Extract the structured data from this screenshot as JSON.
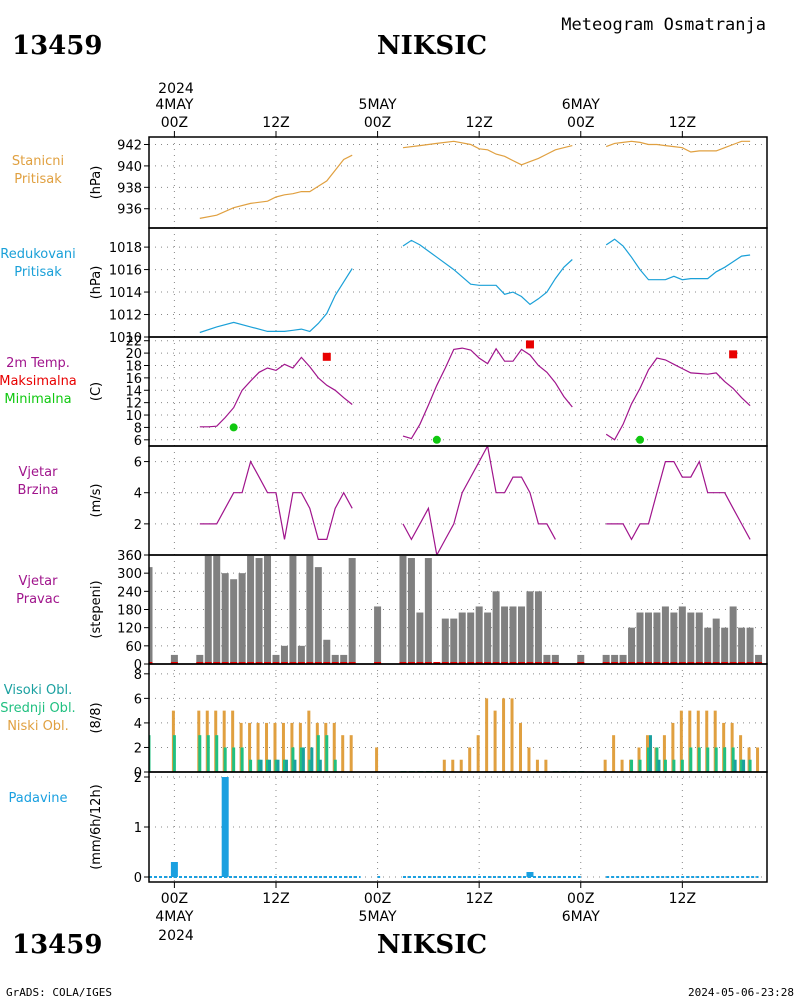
{
  "header": {
    "station_id": "13459",
    "station_name": "NIKSIC",
    "subtitle": "Meteogram Osmatranja",
    "year_top": "2024",
    "year_bottom": "2024"
  },
  "footer": {
    "credit": "GrADS: COLA/IGES",
    "timestamp": "2024-05-06-23:28"
  },
  "time_axis": {
    "ticks": [
      {
        "h": 0,
        "top": [
          "4MAY",
          "00Z"
        ],
        "bottom": [
          "00Z",
          "4MAY"
        ]
      },
      {
        "h": 12,
        "top": [
          "12Z"
        ],
        "bottom": [
          "12Z"
        ]
      },
      {
        "h": 24,
        "top": [
          "5MAY",
          "00Z"
        ],
        "bottom": [
          "00Z",
          "5MAY"
        ]
      },
      {
        "h": 36,
        "top": [
          "12Z"
        ],
        "bottom": [
          "12Z"
        ]
      },
      {
        "h": 48,
        "top": [
          "6MAY",
          "00Z"
        ],
        "bottom": [
          "00Z",
          "6MAY"
        ]
      },
      {
        "h": 60,
        "top": [
          "12Z"
        ],
        "bottom": [
          "12Z"
        ]
      }
    ],
    "range_hours": [
      -3,
      70
    ]
  },
  "colors": {
    "station_pressure": "#e0a040",
    "reduced_pressure": "#1aa0d8",
    "temperature": "#a0148c",
    "maximum": "#e80000",
    "minimum": "#10c810",
    "wind": "#a0148c",
    "wind_dir_bar": "#808080",
    "cloud_high": "#1aa0a0",
    "cloud_mid": "#20c080",
    "cloud_low": "#e0a040",
    "precip": "#1aa0e0",
    "grid": "#888888"
  },
  "chart_data": [
    {
      "type": "line",
      "panel": "station_pressure",
      "labels": [
        "Stanicni",
        "Pritisak"
      ],
      "ylabel": "(hPa)",
      "ylim": [
        934.2,
        942.7
      ],
      "yticks": [
        936,
        938,
        940,
        942
      ],
      "series": [
        {
          "x": [
            3,
            5,
            7,
            9,
            11,
            12,
            13,
            14,
            15,
            16,
            17,
            18,
            19,
            20,
            21
          ],
          "y": [
            935.1,
            935.4,
            936.1,
            936.5,
            936.7,
            937.1,
            937.3,
            937.4,
            937.6,
            937.6,
            938.1,
            938.6,
            939.6,
            940.6,
            941.0
          ]
        },
        {
          "x": [
            27,
            29,
            31,
            33,
            35,
            36,
            37,
            38,
            39,
            40,
            41,
            42,
            43,
            44,
            45,
            46,
            47
          ],
          "y": [
            941.7,
            941.9,
            942.1,
            942.3,
            942.0,
            941.6,
            941.5,
            941.1,
            940.9,
            940.5,
            940.1,
            940.4,
            940.7,
            941.1,
            941.5,
            941.7,
            941.9
          ]
        },
        {
          "x": [
            51,
            52,
            53,
            54,
            55,
            56,
            57,
            58,
            59,
            60,
            61,
            62,
            63,
            64,
            65,
            66,
            67,
            68
          ],
          "y": [
            941.8,
            942.1,
            942.2,
            942.3,
            942.2,
            942.0,
            942.0,
            941.9,
            941.8,
            941.7,
            941.3,
            941.4,
            941.4,
            941.4,
            941.7,
            942.0,
            942.3,
            942.3
          ]
        }
      ]
    },
    {
      "type": "line",
      "panel": "reduced_pressure",
      "labels": [
        "Redukovani",
        "Pritisak"
      ],
      "ylabel": "(hPa)",
      "ylim": [
        1010,
        1019.7
      ],
      "yticks": [
        1010,
        1012,
        1014,
        1016,
        1018
      ],
      "series": [
        {
          "x": [
            3,
            5,
            7,
            9,
            11,
            12,
            13,
            14,
            15,
            16,
            17,
            18,
            19,
            20,
            21
          ],
          "y": [
            1010.4,
            1010.9,
            1011.3,
            1010.9,
            1010.5,
            1010.5,
            1010.5,
            1010.6,
            1010.7,
            1010.5,
            1011.2,
            1012.1,
            1013.7,
            1014.9,
            1016.1
          ]
        },
        {
          "x": [
            27,
            28,
            29,
            31,
            33,
            35,
            36,
            37,
            38,
            39,
            40,
            41,
            42,
            43,
            44,
            45,
            46,
            47
          ],
          "y": [
            1018.1,
            1018.6,
            1018.2,
            1017.1,
            1016.0,
            1014.7,
            1014.6,
            1014.6,
            1014.6,
            1013.8,
            1014.0,
            1013.6,
            1012.9,
            1013.4,
            1014.0,
            1015.2,
            1016.2,
            1016.9
          ]
        },
        {
          "x": [
            51,
            52,
            53,
            54,
            55,
            56,
            57,
            58,
            59,
            60,
            61,
            62,
            63,
            64,
            65,
            66,
            67,
            68
          ],
          "y": [
            1018.2,
            1018.7,
            1018.1,
            1017.1,
            1016.0,
            1015.1,
            1015.1,
            1015.1,
            1015.4,
            1015.1,
            1015.2,
            1015.2,
            1015.2,
            1015.8,
            1016.2,
            1016.7,
            1017.2,
            1017.3
          ]
        }
      ]
    },
    {
      "type": "line",
      "panel": "temperature",
      "labels": [
        "2m Temp.",
        "Maksimalna",
        "Minimalna"
      ],
      "ylabel": "(C)",
      "ylim": [
        5,
        22.6
      ],
      "yticks": [
        6,
        8,
        10,
        12,
        14,
        16,
        18,
        20,
        22
      ],
      "series": [
        {
          "x": [
            3,
            4,
            5,
            6,
            7,
            8,
            9,
            10,
            11,
            12,
            13,
            14,
            15,
            16,
            17,
            18,
            19,
            20,
            21
          ],
          "y": [
            8.1,
            8.1,
            8.2,
            9.6,
            11.2,
            14.0,
            15.5,
            16.9,
            17.6,
            17.2,
            18.2,
            17.6,
            19.3,
            17.8,
            16.0,
            14.8,
            14.0,
            12.8,
            11.7
          ]
        },
        {
          "x": [
            27,
            28,
            29,
            30,
            31,
            32,
            33,
            34,
            35,
            36,
            37,
            38,
            39,
            40,
            41,
            42,
            43,
            44,
            45,
            46,
            47
          ],
          "y": [
            6.6,
            6.2,
            8.5,
            11.6,
            14.8,
            17.6,
            20.6,
            20.8,
            20.5,
            19.2,
            18.3,
            20.7,
            18.7,
            18.7,
            20.6,
            19.7,
            18.0,
            16.9,
            15.2,
            13.0,
            11.3
          ]
        },
        {
          "x": [
            51,
            52,
            53,
            54,
            55,
            56,
            57,
            58,
            59,
            60,
            61,
            62,
            63,
            64,
            65,
            66,
            67,
            68
          ],
          "y": [
            6.9,
            6.0,
            8.5,
            11.8,
            14.3,
            17.3,
            19.2,
            18.9,
            18.2,
            17.5,
            16.8,
            16.7,
            16.6,
            16.8,
            15.4,
            14.3,
            12.8,
            11.5
          ]
        }
      ],
      "maximum": {
        "x": [
          18,
          42,
          66
        ],
        "y": [
          19.4,
          21.4,
          19.8
        ]
      },
      "minimum": {
        "x": [
          7,
          31,
          55
        ],
        "y": [
          8.0,
          6.0,
          6.0
        ]
      }
    },
    {
      "type": "line",
      "panel": "wind_speed",
      "labels": [
        "Vjetar",
        "Brzina"
      ],
      "ylabel": "(m/s)",
      "ylim": [
        0,
        7
      ],
      "yticks": [
        0,
        2,
        4,
        6
      ],
      "series": [
        {
          "x": [
            3,
            5,
            6,
            7,
            8,
            9,
            10,
            11,
            12,
            13,
            14,
            15,
            16,
            17,
            18,
            19,
            20,
            21
          ],
          "y": [
            2,
            2,
            3,
            4,
            4,
            6,
            5,
            4,
            4,
            1,
            4,
            4,
            3,
            1,
            1,
            3,
            4,
            3
          ]
        },
        {
          "x": [
            27,
            28,
            29,
            30,
            31,
            32,
            33,
            34,
            35,
            36,
            37,
            38,
            39,
            40,
            41,
            42,
            43,
            44,
            45,
            46,
            47
          ],
          "y": [
            2,
            1,
            2,
            3,
            0,
            1,
            2,
            4,
            5,
            6,
            7,
            4,
            4,
            5,
            5,
            4,
            2,
            2,
            1,
            null,
            null
          ]
        },
        {
          "x": [
            51,
            52,
            53,
            54,
            55,
            56,
            57,
            58,
            59,
            60,
            61,
            62,
            63,
            64,
            65,
            66,
            67,
            68
          ],
          "y": [
            2,
            2,
            2,
            1,
            2,
            2,
            4,
            6,
            6,
            5,
            5,
            6,
            4,
            4,
            4,
            3,
            2,
            1
          ]
        }
      ]
    },
    {
      "type": "bar",
      "panel": "wind_direction",
      "labels": [
        "Vjetar",
        "Pravac"
      ],
      "ylabel": "(stepeni)",
      "ylim": [
        0,
        360
      ],
      "yticks": [
        0,
        60,
        120,
        180,
        240,
        300,
        360
      ],
      "x": [
        -3,
        0,
        3,
        4,
        5,
        6,
        7,
        8,
        9,
        10,
        11,
        12,
        13,
        14,
        15,
        16,
        17,
        18,
        19,
        20,
        21,
        24,
        27,
        28,
        29,
        30,
        31,
        32,
        33,
        34,
        35,
        36,
        37,
        38,
        39,
        40,
        41,
        42,
        43,
        44,
        45,
        46,
        47,
        48,
        51,
        52,
        53,
        54,
        55,
        56,
        57,
        58,
        59,
        60,
        61,
        62,
        63,
        64,
        65,
        66,
        67,
        68,
        69
      ],
      "values": [
        320,
        30,
        30,
        360,
        360,
        300,
        280,
        300,
        360,
        350,
        360,
        30,
        60,
        360,
        60,
        360,
        320,
        80,
        30,
        30,
        350,
        190,
        360,
        350,
        170,
        350,
        0,
        150,
        150,
        170,
        170,
        190,
        170,
        240,
        190,
        190,
        190,
        240,
        240,
        30,
        30,
        null,
        null,
        30,
        30,
        30,
        30,
        120,
        170,
        170,
        170,
        190,
        170,
        190,
        170,
        170,
        120,
        150,
        120,
        190,
        120,
        120,
        30
      ]
    },
    {
      "type": "bar",
      "panel": "clouds",
      "labels": [
        "Visoki Obl.",
        "Srednji Obl.",
        "Niski Obl."
      ],
      "ylabel": "(8/8)",
      "ylim": [
        0,
        8.8
      ],
      "yticks": [
        0,
        2,
        4,
        6,
        8
      ],
      "x": [
        -3,
        0,
        3,
        4,
        5,
        6,
        7,
        8,
        9,
        10,
        11,
        12,
        13,
        14,
        15,
        16,
        17,
        18,
        19,
        20,
        21,
        24,
        27,
        28,
        29,
        30,
        31,
        32,
        33,
        34,
        35,
        36,
        37,
        38,
        39,
        40,
        41,
        42,
        43,
        44,
        45,
        46,
        47,
        48,
        51,
        52,
        53,
        54,
        55,
        56,
        57,
        58,
        59,
        60,
        61,
        62,
        63,
        64,
        65,
        66,
        67,
        68,
        69
      ],
      "series": [
        {
          "name": "Niski Obl.",
          "values": [
            5,
            5,
            5,
            5,
            5,
            5,
            5,
            4,
            4,
            4,
            4,
            4,
            4,
            4,
            4,
            5,
            4,
            4,
            4,
            3,
            3,
            2,
            0,
            0,
            0,
            0,
            0,
            1,
            1,
            1,
            2,
            3,
            6,
            5,
            6,
            6,
            4,
            2,
            1,
            1,
            0,
            0,
            0,
            0,
            1,
            3,
            1,
            1,
            2,
            3,
            2,
            3,
            4,
            5,
            5,
            5,
            5,
            5,
            4,
            4,
            3,
            2,
            2
          ]
        },
        {
          "name": "Srednji Obl.",
          "values": [
            3,
            3,
            3,
            3,
            3,
            2,
            2,
            2,
            1,
            1,
            1,
            1,
            1,
            2,
            2,
            1,
            3,
            3,
            1,
            0,
            0,
            0,
            0,
            0,
            0,
            0,
            0,
            0,
            0,
            0,
            0,
            0,
            0,
            0,
            0,
            0,
            0,
            0,
            0,
            0,
            0,
            0,
            0,
            0,
            0,
            0,
            0,
            1,
            1,
            2,
            2,
            1,
            1,
            1,
            2,
            2,
            2,
            2,
            2,
            2,
            1,
            1,
            0
          ]
        },
        {
          "name": "Visoki Obl.",
          "values": [
            0,
            0,
            0,
            0,
            0,
            0,
            0,
            0,
            0,
            1,
            1,
            1,
            1,
            1,
            2,
            2,
            1,
            0,
            0,
            0,
            0,
            0,
            0,
            0,
            0,
            0,
            0,
            0,
            0,
            0,
            0,
            0,
            0,
            0,
            0,
            0,
            0,
            0,
            0,
            0,
            0,
            0,
            0,
            0,
            0,
            0,
            0,
            0,
            0,
            3,
            1,
            0,
            0,
            0,
            0,
            0,
            0,
            0,
            0,
            1,
            1,
            0,
            0
          ]
        }
      ]
    },
    {
      "type": "bar",
      "panel": "precipitation",
      "labels": [
        "Padavine"
      ],
      "ylabel": "(mm/6h/12h)",
      "ylim": [
        -0.1,
        2.1
      ],
      "yticks": [
        0,
        1,
        2
      ],
      "bars": [
        {
          "x": 0,
          "value": 0.3
        },
        {
          "x": 6,
          "value": 2.0
        },
        {
          "x": 42,
          "value": 0.1
        }
      ]
    }
  ]
}
